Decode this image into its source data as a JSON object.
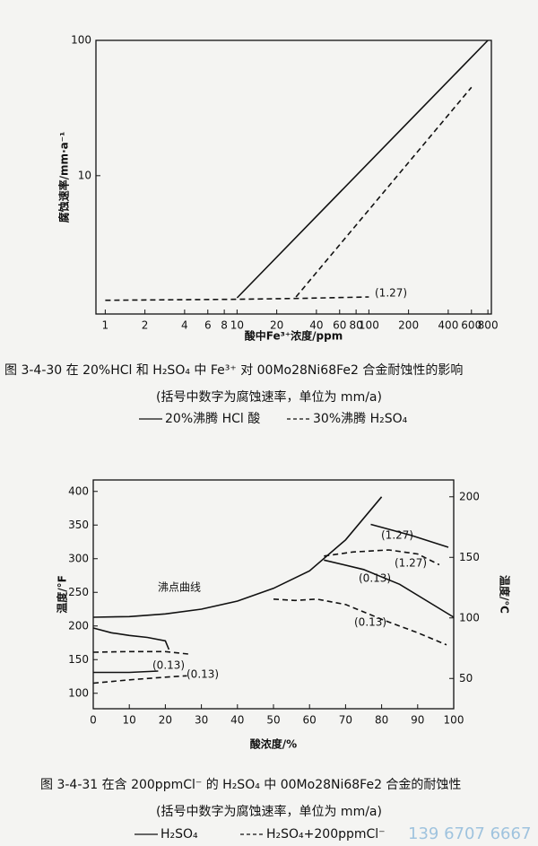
{
  "chart_data": [
    {
      "type": "line",
      "xscale": "log",
      "yscale": "log",
      "caption": "图 3-4-30   在 20%HCl 和 H₂SO₄ 中 Fe³⁺ 对 00Mo28Ni68Fe2 合金耐蚀性的影响",
      "note": "(括号中数字为腐蚀速率，单位为 mm/a)",
      "x_label": "酸中Fe³⁺浓度/ppm",
      "y_label": "腐蚀速率/mm·a⁻¹",
      "xlim": [
        0.85,
        850
      ],
      "ylim": [
        0.95,
        100
      ],
      "xticks": [
        1,
        2,
        4,
        6,
        8,
        10,
        20,
        40,
        60,
        80,
        100,
        200,
        400,
        600,
        800
      ],
      "yticks": [
        10,
        100
      ],
      "series": [
        {
          "name": "20%沸腾 HCl 酸",
          "color": "#111111",
          "dash": false,
          "in_legend": true,
          "x": [
            10,
            800
          ],
          "values": [
            1.25,
            100
          ]
        },
        {
          "name": "30%沸腾 H₂SO₄",
          "color": "#111111",
          "dash": true,
          "in_legend": true,
          "x": [
            1,
            10,
            30,
            100,
            null,
            28,
            600
          ],
          "values": [
            1.2,
            1.22,
            1.24,
            1.27,
            null,
            1.27,
            45
          ]
        }
      ],
      "annotations": [
        "(1.27)"
      ]
    },
    {
      "type": "line",
      "caption": "图 3-4-31   在含 200ppmCl⁻ 的 H₂SO₄ 中 00Mo28Ni68Fe2 合金的耐蚀性",
      "note": "(括号中数字为腐蚀速率，单位为 mm/a)",
      "x_label": "酸浓度/%",
      "y_label": "温度/°F",
      "y2_label": "温度/℃",
      "xlim": [
        0,
        100
      ],
      "ylim": [
        77,
        417
      ],
      "y2lim": [
        25,
        213.9
      ],
      "xticks": [
        0,
        10,
        20,
        30,
        40,
        50,
        60,
        70,
        80,
        90,
        100
      ],
      "yticks": [
        100,
        150,
        200,
        250,
        300,
        350,
        400
      ],
      "y2ticks": [
        50,
        100,
        150,
        200
      ],
      "series": [
        {
          "name": "H₂SO₄",
          "color": "#111111",
          "dash": false,
          "in_legend": true,
          "x": [
            77,
            88,
            98.5,
            null,
            64,
            75,
            85,
            100,
            null,
            0,
            5,
            10,
            15,
            20,
            21,
            null,
            0,
            10,
            18
          ],
          "values": [
            351,
            335,
            317,
            null,
            298,
            284,
            262,
            213,
            null,
            197,
            190,
            186,
            183,
            178,
            165,
            null,
            131,
            131,
            133
          ]
        },
        {
          "name": "H₂SO₄+200ppmCl⁻",
          "color": "#111111",
          "dash": true,
          "in_legend": true,
          "x": [
            64,
            72,
            82,
            90,
            96,
            null,
            50,
            56,
            62,
            70,
            80,
            90,
            98,
            null,
            0,
            10,
            20,
            27,
            null,
            0,
            10,
            20,
            26
          ],
          "values": [
            304,
            310,
            313,
            307,
            291,
            null,
            240,
            238,
            240,
            232,
            210,
            190,
            172,
            null,
            161,
            162,
            162,
            158,
            null,
            115,
            120,
            124,
            126
          ]
        },
        {
          "name": "沸点曲线",
          "color": "#111111",
          "dash": false,
          "in_legend": false,
          "x": [
            0,
            10,
            20,
            30,
            40,
            50,
            60,
            70,
            80
          ],
          "values": [
            213,
            214,
            218,
            225,
            237,
            256,
            282,
            328,
            392
          ]
        }
      ],
      "annotations": [
        "(1.27)",
        "(1.27)",
        "(0.13)",
        "(0.13)",
        "(0.13)",
        "(0.13)"
      ]
    }
  ],
  "watermark": "139 6707 6667"
}
